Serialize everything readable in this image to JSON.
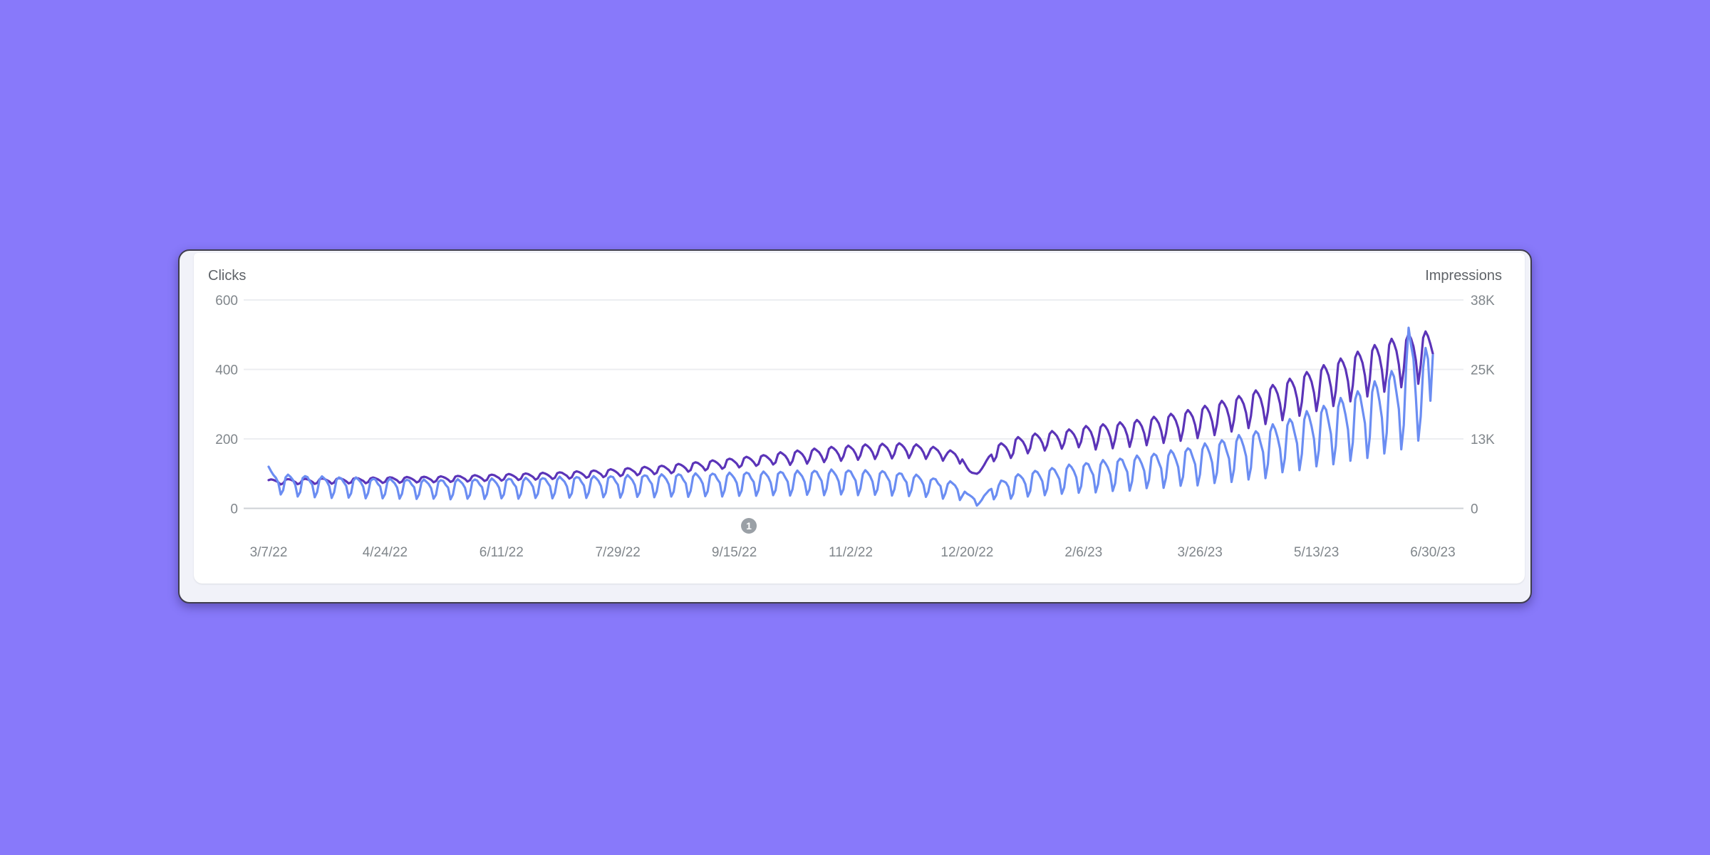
{
  "colors": {
    "background": "#8879FA",
    "card_background": "#F1F2F9",
    "panel_background": "#FFFFFF",
    "card_border": "#3F3D4D",
    "grid_line": "#ECEEF1",
    "axis_line": "#CDD1D6",
    "tick_text": "#80868B",
    "axis_title_text": "#5F6368",
    "annotation_badge": "#9AA0A6",
    "annotation_text": "#FFFFFF"
  },
  "chart_data": {
    "type": "line",
    "title": "",
    "grid": true,
    "legend_position": "none",
    "left_axis": {
      "label": "Clicks",
      "range": [
        0,
        600
      ],
      "ticks": [
        {
          "value": 600,
          "label": "600"
        },
        {
          "value": 400,
          "label": "400"
        },
        {
          "value": 200,
          "label": "200"
        },
        {
          "value": 0,
          "label": "0"
        }
      ]
    },
    "right_axis": {
      "label": "Impressions",
      "range": [
        0,
        38000
      ],
      "ticks": [
        {
          "value": 38000,
          "label": "38K"
        },
        {
          "value": 25333,
          "label": "25K"
        },
        {
          "value": 12667,
          "label": "13K"
        },
        {
          "value": 0,
          "label": "0"
        }
      ]
    },
    "x_axis": {
      "unit": "day",
      "start_date": "3/7/22",
      "end_date": "6/30/23",
      "tick_labels": [
        "3/7/22",
        "4/24/22",
        "6/11/22",
        "7/29/22",
        "9/15/22",
        "11/2/22",
        "12/20/22",
        "2/6/23",
        "3/26/23",
        "5/13/23",
        "6/30/23"
      ]
    },
    "annotation": {
      "label": "1",
      "day_index": 198
    },
    "series": [
      {
        "name": "Impressions",
        "axis": "right",
        "color": "#5B34B8",
        "values": [
          5140,
          5290,
          5190,
          5000,
          4750,
          4360,
          4560,
          5210,
          5340,
          5260,
          5040,
          4810,
          4400,
          4610,
          5240,
          5410,
          5290,
          5110,
          4840,
          4460,
          4640,
          5310,
          5440,
          5360,
          5140,
          4910,
          4480,
          4710,
          5350,
          5520,
          5400,
          5210,
          4940,
          4550,
          4730,
          5420,
          5550,
          5470,
          5240,
          5010,
          4570,
          4800,
          5450,
          5630,
          5500,
          5310,
          5030,
          4640,
          4830,
          5520,
          5660,
          5580,
          5350,
          5100,
          4660,
          4890,
          5560,
          5730,
          5610,
          5420,
          5130,
          4730,
          4920,
          5630,
          5770,
          5680,
          5450,
          5200,
          4750,
          4990,
          5660,
          5840,
          5710,
          5520,
          5230,
          4820,
          5010,
          5790,
          5930,
          5840,
          5600,
          5350,
          4890,
          5130,
          5870,
          6060,
          5930,
          5720,
          5420,
          4990,
          5200,
          6000,
          6150,
          6050,
          5800,
          5540,
          5060,
          5310,
          6080,
          6270,
          6140,
          5930,
          5620,
          5170,
          5380,
          6210,
          6360,
          6260,
          6010,
          5730,
          5240,
          5500,
          6290,
          6490,
          6350,
          6130,
          5810,
          5350,
          5570,
          6420,
          6580,
          6480,
          6210,
          5930,
          5420,
          5680,
          6550,
          6760,
          6620,
          6390,
          6050,
          5570,
          5800,
          6730,
          6900,
          6790,
          6520,
          6220,
          5690,
          5960,
          6920,
          7140,
          6990,
          6740,
          6390,
          5880,
          6130,
          7150,
          7330,
          7220,
          6930,
          6610,
          6040,
          6330,
          7340,
          7570,
          7410,
          7150,
          6780,
          6240,
          6500,
          7570,
          7770,
          7640,
          7330,
          6990,
          6400,
          6710,
          7870,
          8110,
          7940,
          7660,
          7270,
          6690,
          6970,
          8200,
          8410,
          8280,
          7950,
          7580,
          6930,
          7260,
          8500,
          8760,
          8580,
          8270,
          7850,
          7220,
          7520,
          8830,
          9060,
          8910,
          8560,
          8160,
          7470,
          7820,
          9130,
          9410,
          9210,
          8880,
          8430,
          7750,
          8080,
          9460,
          9710,
          9550,
          9170,
          8740,
          8000,
          8380,
          9850,
          10240,
          9940,
          9590,
          8920,
          7920,
          8640,
          10190,
          10550,
          10280,
          9880,
          9230,
          8150,
          8940,
          10480,
          10900,
          10580,
          10210,
          9490,
          8430,
          9200,
          10820,
          11210,
          10920,
          10500,
          9800,
          8660,
          9500,
          11010,
          11450,
          11120,
          10720,
          9970,
          8850,
          9660,
          11250,
          11650,
          11350,
          10910,
          10190,
          9000,
          9870,
          11330,
          11780,
          11440,
          11030,
          10260,
          9110,
          9940,
          11460,
          11870,
          11570,
          11110,
          10380,
          9170,
          10050,
          11230,
          11670,
          11330,
          10930,
          10170,
          9020,
          9850,
          10820,
          11210,
          10900,
          10520,
          9780,
          8680,
          9480,
          10170,
          10570,
          10260,
          9900,
          9210,
          8170,
          8920,
          8200,
          7400,
          6800,
          6500,
          6400,
          6300,
          6600,
          7200,
          7900,
          8700,
          9400,
          9800,
          8600,
          9400,
          11460,
          11870,
          11550,
          11130,
          10360,
          9190,
          10030,
          12500,
          12990,
          12620,
          12160,
          11320,
          10040,
          10960,
          13150,
          13630,
          13280,
          12760,
          11910,
          10530,
          11540,
          13560,
          14090,
          13690,
          13190,
          12280,
          10890,
          11890,
          13900,
          14400,
          14030,
          13480,
          12590,
          11130,
          12190,
          14460,
          15020,
          14600,
          13950,
          12720,
          10730,
          12320,
          14810,
          15330,
          14940,
          14240,
          13030,
          10950,
          12610,
          15110,
          15690,
          15250,
          14570,
          13290,
          11210,
          12870,
          15560,
          16120,
          15710,
          14970,
          13690,
          11510,
          13260,
          16080,
          16700,
          16230,
          15510,
          14150,
          11930,
          13700,
          16640,
          17240,
          16800,
          16010,
          14640,
          12310,
          14180,
          17270,
          17930,
          17430,
          16650,
          15190,
          12810,
          14710,
          18050,
          18690,
          18210,
          17360,
          15880,
          13350,
          15370,
          18890,
          19610,
          19070,
          18210,
          16620,
          14010,
          16090,
          19770,
          20490,
          19960,
          19020,
          17400,
          14630,
          16850,
          20730,
          21510,
          20920,
          19980,
          18230,
          15370,
          17650,
          21720,
          22500,
          21920,
          20890,
          19110,
          16070,
          18500,
          22780,
          23640,
          22990,
          21950,
          20040,
          16890,
          19400,
          23990,
          24850,
          24210,
          23080,
          21100,
          17750,
          20430,
          25150,
          26110,
          25390,
          24240,
          22130,
          18650,
          21430,
          26360,
          27320,
          26610,
          25370,
          23190,
          19510,
          22460,
          27530,
          28570,
          27790,
          26530,
          24220,
          20410,
          23450,
          28740,
          29780,
          29000,
          27650,
          25280,
          21270,
          24480,
          29800,
          30920,
          30070,
          28710,
          26210,
          22090,
          25380,
          30680,
          31800,
          30970,
          29530,
          26990,
          22710,
          26140,
          31100,
          32260,
          31390,
          29950,
          28200
        ]
      },
      {
        "name": "Clicks",
        "axis": "left",
        "color": "#6B8DF2",
        "values": [
          120,
          107,
          96,
          88,
          74,
          40,
          52,
          89,
          97,
          91,
          82,
          68,
          34,
          47,
          87,
          93,
          90,
          78,
          68,
          32,
          47,
          83,
          92,
          86,
          78,
          64,
          30,
          46,
          82,
          89,
          86,
          75,
          65,
          31,
          43,
          80,
          89,
          83,
          75,
          62,
          29,
          44,
          79,
          85,
          83,
          71,
          63,
          29,
          41,
          77,
          86,
          79,
          72,
          60,
          28,
          42,
          78,
          82,
          80,
          69,
          61,
          27,
          40,
          75,
          83,
          77,
          70,
          58,
          28,
          39,
          76,
          81,
          79,
          68,
          60,
          26,
          40,
          76,
          84,
          78,
          71,
          59,
          28,
          39,
          78,
          83,
          80,
          69,
          61,
          27,
          41,
          77,
          86,
          80,
          72,
          60,
          29,
          40,
          80,
          85,
          83,
          71,
          62,
          28,
          42,
          79,
          88,
          82,
          74,
          62,
          30,
          42,
          82,
          87,
          85,
          74,
          64,
          29,
          44,
          82,
          91,
          84,
          77,
          63,
          31,
          43,
          85,
          90,
          88,
          76,
          66,
          30,
          46,
          84,
          93,
          87,
          79,
          65,
          32,
          45,
          87,
          92,
          90,
          78,
          68,
          31,
          47,
          86,
          96,
          89,
          81,
          67,
          33,
          46,
          90,
          95,
          93,
          80,
          70,
          32,
          49,
          89,
          98,
          92,
          83,
          69,
          34,
          48,
          92,
          98,
          95,
          82,
          72,
          33,
          50,
          91,
          101,
          94,
          85,
          71,
          35,
          49,
          94,
          100,
          97,
          84,
          74,
          34,
          52,
          93,
          103,
          96,
          87,
          73,
          36,
          51,
          97,
          103,
          100,
          86,
          76,
          36,
          53,
          96,
          106,
          99,
          90,
          74,
          38,
          52,
          99,
          105,
          102,
          89,
          77,
          37,
          55,
          98,
          109,
          101,
          92,
          76,
          39,
          54,
          101,
          108,
          105,
          91,
          79,
          38,
          56,
          100,
          112,
          104,
          94,
          78,
          40,
          55,
          103,
          109,
          106,
          92,
          80,
          38,
          57,
          99,
          110,
          103,
          93,
          77,
          39,
          54,
          100,
          107,
          103,
          90,
          78,
          37,
          55,
          95,
          101,
          99,
          85,
          75,
          35,
          52,
          88,
          97,
          91,
          82,
          68,
          33,
          47,
          81,
          86,
          84,
          72,
          64,
          28,
          43,
          70,
          78,
          72,
          66,
          54,
          24,
          36,
          48,
          42,
          38,
          33,
          26,
          8,
          15,
          24,
          36,
          44,
          52,
          56,
          26,
          38,
          66,
          80,
          78,
          74,
          62,
          28,
          42,
          90,
          98,
          93,
          85,
          70,
          34,
          50,
          100,
          108,
          104,
          92,
          78,
          38,
          56,
          108,
          116,
          111,
          98,
          84,
          42,
          60,
          114,
          126,
          119,
          107,
          89,
          45,
          64,
          121,
          130,
          127,
          110,
          96,
          46,
          70,
          126,
          139,
          130,
          118,
          98,
          50,
          72,
          134,
          143,
          139,
          121,
          105,
          51,
          78,
          138,
          152,
          143,
          128,
          108,
          58,
          82,
          147,
          157,
          152,
          133,
          115,
          59,
          88,
          152,
          167,
          158,
          141,
          119,
          65,
          91,
          163,
          173,
          168,
          147,
          127,
          66,
          98,
          170,
          187,
          176,
          158,
          132,
          73,
          103,
          183,
          196,
          189,
          165,
          143,
          76,
          112,
          193,
          211,
          199,
          178,
          150,
          83,
          117,
          208,
          222,
          215,
          188,
          162,
          87,
          128,
          221,
          242,
          228,
          204,
          172,
          104,
          144,
          239,
          257,
          247,
          217,
          187,
          110,
          157,
          256,
          280,
          264,
          236,
          200,
          121,
          167,
          275,
          295,
          284,
          250,
          214,
          127,
          180,
          292,
          318,
          302,
          269,
          227,
          137,
          190,
          314,
          337,
          324,
          285,
          245,
          145,
          205,
          335,
          366,
          347,
          309,
          261,
          158,
          218,
          368,
          395,
          379,
          334,
          286,
          170,
          240,
          410,
          520,
          470,
          430,
          320,
          195,
          265,
          405,
          462,
          430,
          310,
          441
        ]
      }
    ]
  }
}
